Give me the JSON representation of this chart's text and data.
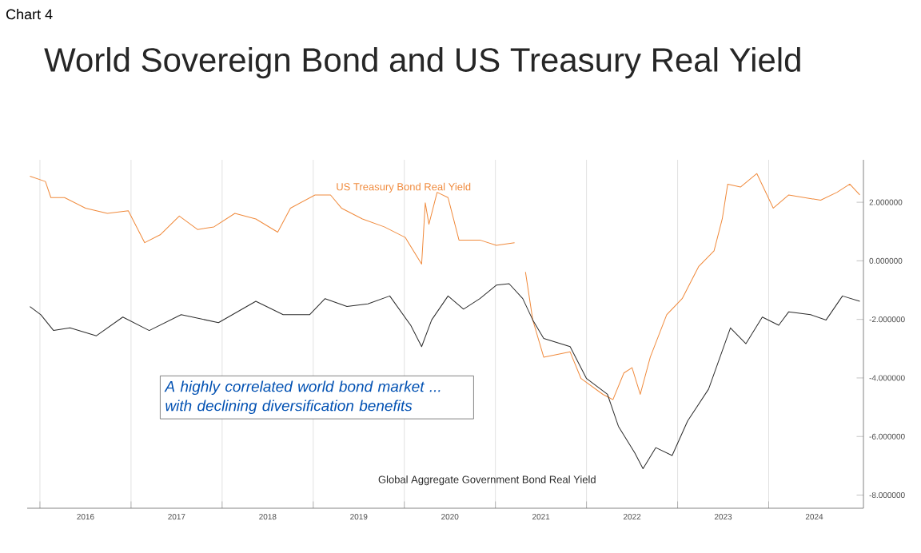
{
  "chart_data": {
    "type": "line",
    "title": "World Sovereign Bond and US Treasury Real Yield",
    "annotations": [
      "Chart 4",
      "A highly correlated world bond market ... with declining diversification benefits"
    ],
    "xlim": [
      2015.86,
      2025.04
    ],
    "xticks": [
      {
        "value": 2016,
        "label": null
      },
      {
        "value": 2016.5,
        "label": "2016"
      },
      {
        "value": 2017,
        "label": null
      },
      {
        "value": 2017.5,
        "label": "2017"
      },
      {
        "value": 2018,
        "label": null
      },
      {
        "value": 2018.5,
        "label": "2018"
      },
      {
        "value": 2019,
        "label": null
      },
      {
        "value": 2019.5,
        "label": "2019"
      },
      {
        "value": 2020,
        "label": null
      },
      {
        "value": 2020.5,
        "label": "2020"
      },
      {
        "value": 2021,
        "label": null
      },
      {
        "value": 2021.5,
        "label": "2021"
      },
      {
        "value": 2022,
        "label": null
      },
      {
        "value": 2022.5,
        "label": "2022"
      },
      {
        "value": 2023,
        "label": null
      },
      {
        "value": 2023.5,
        "label": "2023"
      },
      {
        "value": 2024,
        "label": null
      },
      {
        "value": 2024.5,
        "label": "2024"
      }
    ],
    "ylim": [
      -8.45,
      3.45
    ],
    "yticks": [
      {
        "value": 2,
        "label": "2.000000"
      },
      {
        "value": 0,
        "label": "0.000000"
      },
      {
        "value": -2,
        "label": "-2.000000"
      },
      {
        "value": -4,
        "label": "-4.000000"
      },
      {
        "value": -6,
        "label": "-6.000000"
      },
      {
        "value": -8,
        "label": "-8.000000"
      }
    ],
    "grid": "x",
    "legend": false,
    "line_style": "solid",
    "marker": "none",
    "series": [
      {
        "name": "US Treasury Bond Real Yield",
        "color": "#f08a3c",
        "x": [
          2015.89,
          2016.06,
          2016.12,
          2016.27,
          2016.5,
          2016.74,
          2016.97,
          2017.15,
          2017.32,
          2017.53,
          2017.73,
          2017.91,
          2018.14,
          2018.37,
          2018.61,
          2018.75,
          2019.02,
          2019.19,
          2019.31,
          2019.54,
          2019.78,
          2020.01,
          2020.19,
          2020.23,
          2020.27,
          2020.36,
          2020.48,
          2020.6,
          2020.83,
          2021.01,
          2021.21,
          2021.27,
          2021.33,
          2021.41,
          2021.53,
          2021.82,
          2021.94,
          2022.18,
          2022.29,
          2022.41,
          2022.5,
          2022.59,
          2022.7,
          2022.88,
          2023.05,
          2023.23,
          2023.4,
          2023.49,
          2023.55,
          2023.69,
          2023.87,
          2024.05,
          2024.22,
          2024.57,
          2024.75,
          2024.89,
          2025.0
        ],
        "values": [
          2.89,
          2.71,
          2.16,
          2.16,
          1.8,
          1.62,
          1.71,
          0.62,
          0.89,
          1.53,
          1.07,
          1.16,
          1.62,
          1.43,
          0.98,
          1.8,
          2.25,
          2.25,
          1.8,
          1.43,
          1.16,
          0.8,
          -0.11,
          1.98,
          1.25,
          2.34,
          2.16,
          0.71,
          0.71,
          0.53,
          0.62,
          null,
          -0.38,
          -2.02,
          -3.29,
          -3.11,
          -4.02,
          -4.56,
          -4.74,
          -3.83,
          -3.65,
          -4.56,
          -3.29,
          -1.84,
          -1.29,
          -0.2,
          0.34,
          1.43,
          2.62,
          2.52,
          2.98,
          1.8,
          2.25,
          2.07,
          2.34,
          2.62,
          2.25
        ]
      },
      {
        "name": "Global Aggregate Government Bond Real Yield",
        "color": "#2b2b2b",
        "x": [
          2015.89,
          2016.01,
          2016.15,
          2016.33,
          2016.62,
          2016.91,
          2017.2,
          2017.55,
          2017.96,
          2018.37,
          2018.67,
          2018.96,
          2019.13,
          2019.37,
          2019.6,
          2019.84,
          2020.07,
          2020.19,
          2020.3,
          2020.48,
          2020.65,
          2020.83,
          2021.01,
          2021.15,
          2021.3,
          2021.41,
          2021.53,
          2021.82,
          2022.0,
          2022.23,
          2022.35,
          2022.53,
          2022.62,
          2022.76,
          2022.94,
          2023.11,
          2023.34,
          2023.58,
          2023.75,
          2023.93,
          2024.11,
          2024.22,
          2024.46,
          2024.63,
          2024.81,
          2025.0
        ],
        "values": [
          -1.56,
          -1.84,
          -2.38,
          -2.29,
          -2.56,
          -1.92,
          -2.38,
          -1.84,
          -2.11,
          -1.38,
          -1.84,
          -1.84,
          -1.29,
          -1.56,
          -1.47,
          -1.2,
          -2.2,
          -2.93,
          -2.02,
          -1.2,
          -1.65,
          -1.29,
          -0.83,
          -0.78,
          -1.29,
          -2.02,
          -2.65,
          -2.93,
          -4.02,
          -4.56,
          -5.65,
          -6.56,
          -7.1,
          -6.38,
          -6.65,
          -5.47,
          -4.38,
          -2.29,
          -2.83,
          -1.92,
          -2.2,
          -1.74,
          -1.84,
          -2.02,
          -1.2,
          -1.38
        ]
      }
    ]
  }
}
